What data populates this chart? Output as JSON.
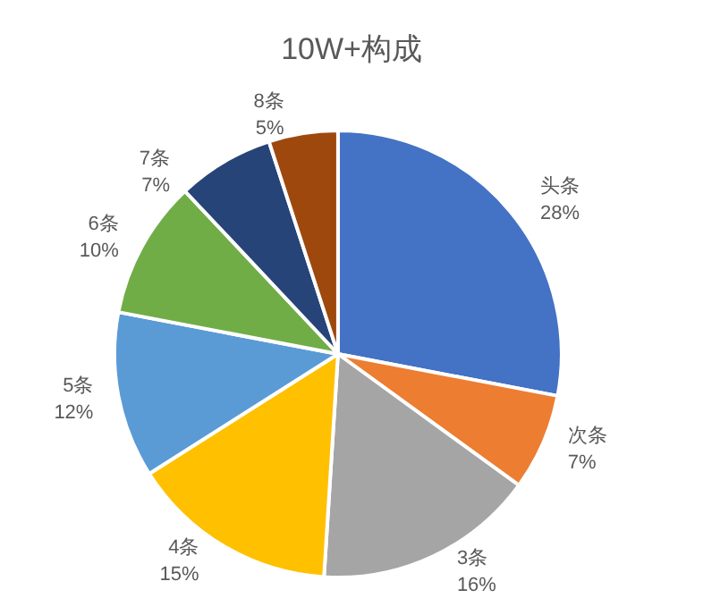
{
  "chart_data": {
    "type": "pie",
    "title": "10W+构成",
    "categories": [
      "头条",
      "次条",
      "3条",
      "4条",
      "5条",
      "6条",
      "7条",
      "8条"
    ],
    "values": [
      28,
      7,
      16,
      15,
      12,
      10,
      7,
      5
    ],
    "value_labels": [
      "28%",
      "7%",
      "16%",
      "15%",
      "12%",
      "10%",
      "7%",
      "5%"
    ],
    "colors": [
      "#4472c4",
      "#ed7d31",
      "#a5a5a5",
      "#ffc000",
      "#5b9bd5",
      "#70ad47",
      "#264478",
      "#9e480e"
    ],
    "legend": false
  }
}
